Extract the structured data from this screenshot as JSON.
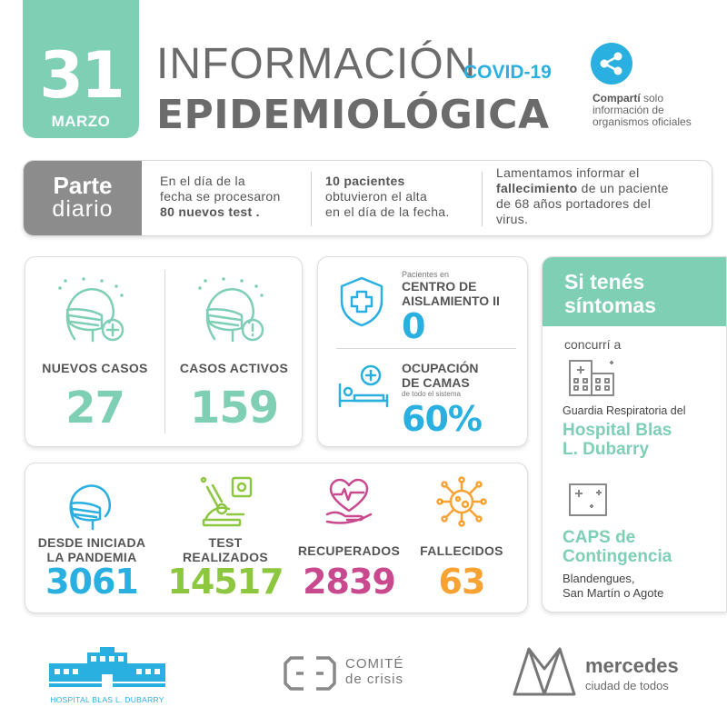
{
  "header": {
    "day": "31",
    "month": "MARZO",
    "title_line1": "INFORMACIÓN",
    "title_tag": "COVID-19",
    "title_line2": "EPIDEMIOLÓGICA"
  },
  "share": {
    "bold": "Compartí",
    "text_1": " solo",
    "text_2": "información de",
    "text_3": "organismos oficiales"
  },
  "parte": {
    "label_1": "Parte",
    "label_2": "diario",
    "col1_l1": "En el día de la",
    "col1_l2": "fecha se procesaron",
    "col1_l3": "80 nuevos test .",
    "col2_l1": "10 pacientes",
    "col2_l2": "obtuvieron el alta",
    "col2_l3": "en el día de la fecha.",
    "col3_l1": "Lamentamos informar el",
    "col3_bold": "fallecimiento",
    "col3_l2": " de un paciente",
    "col3_l3": "de  68 años portadores del",
    "col3_l4": "virus."
  },
  "cases": {
    "new_label": "NUEVOS CASOS",
    "new_value": "27",
    "active_label": "CASOS ACTIVOS",
    "active_value": "159"
  },
  "isolation": {
    "small": "Pacientes en",
    "label_1": "CENTRO DE",
    "label_2": "AISLAMIENTO II",
    "value": "0",
    "beds_1": "OCUPACIÓN",
    "beds_2": "DE CAMAS",
    "beds_small": "de todo el sistema",
    "beds_value": "60%"
  },
  "totals": {
    "since_1": "DESDE INICIADA",
    "since_2": "LA PANDEMIA",
    "since_value": "3061",
    "tests_1": "TEST",
    "tests_2": "REALIZADOS",
    "tests_value": "14517",
    "recovered_label": "RECUPERADOS",
    "recovered_value": "2839",
    "deaths_label": "FALLECIDOS",
    "deaths_value": "63"
  },
  "side": {
    "title_1": "Si tenés",
    "title_2": "síntomas",
    "go_to": "concurrí a",
    "guardia": "Guardia Respiratoria del",
    "hospital_1": "Hospital Blas",
    "hospital_2": "L. Dubarry",
    "caps_1": "CAPS de",
    "caps_2": "Contingencia",
    "caps_loc_1": "Blandengues,",
    "caps_loc_2": "San Martín o Agote"
  },
  "footer": {
    "hospital": "HOSPITAL BLAS L. DUBARRY",
    "comite_1": "COMITÉ",
    "comite_2": "de crisis",
    "mercedes_1": "mercedes",
    "mercedes_2": "ciudad de todos"
  },
  "colors": {
    "green": "#7ecfb3",
    "blue": "#2ab0e0",
    "lime": "#8dc63f",
    "magenta": "#c8498e",
    "orange": "#f7a233",
    "gray": "#6b6b6b"
  }
}
